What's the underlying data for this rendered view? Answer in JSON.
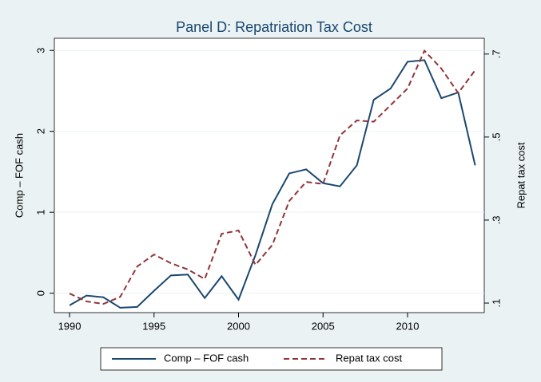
{
  "chart_data": {
    "type": "line",
    "title": "Panel D: Repatriation Tax Cost",
    "ylabel": "Comp – FOF cash",
    "y2label": "Repat tax cost",
    "x": [
      1990,
      1991,
      1992,
      1993,
      1994,
      1995,
      1996,
      1997,
      1998,
      1999,
      2000,
      2001,
      2002,
      2003,
      2004,
      2005,
      2006,
      2007,
      2008,
      2009,
      2010,
      2011,
      2012,
      2013,
      2014
    ],
    "series": [
      {
        "name": "Comp – FOF cash",
        "color": "#1a476f",
        "dash": "solid",
        "values": [
          -0.15,
          -0.03,
          -0.05,
          -0.18,
          -0.17,
          0.03,
          0.22,
          0.23,
          -0.06,
          0.21,
          -0.08,
          0.47,
          1.1,
          1.48,
          1.53,
          1.36,
          1.32,
          1.58,
          2.39,
          2.53,
          2.86,
          2.88,
          2.41,
          2.48,
          1.58
        ]
      },
      {
        "name": "Repat tax cost",
        "color": "#90353b",
        "dash": "dashed",
        "axis": "y2",
        "values": [
          0.123,
          0.104,
          0.098,
          0.115,
          0.188,
          0.217,
          0.196,
          0.181,
          0.158,
          0.267,
          0.275,
          0.192,
          0.24,
          0.346,
          0.392,
          0.387,
          0.504,
          0.54,
          0.537,
          0.577,
          0.617,
          0.708,
          0.665,
          0.606,
          0.661
        ]
      }
    ],
    "xlim": [
      1989.1,
      2014.54
    ],
    "xticks": [
      1990,
      1995,
      2000,
      2005,
      2010
    ],
    "ylim": [
      -0.24,
      3.15
    ],
    "yticks": [
      0,
      1,
      2,
      3
    ],
    "y2lim": [
      0.077,
      0.738
    ],
    "y2ticks": [
      {
        "value": 0.1,
        "label": ".1"
      },
      {
        "value": 0.3,
        "label": ".3"
      },
      {
        "value": 0.5,
        "label": ".5"
      },
      {
        "value": 0.7,
        "label": ".7"
      }
    ],
    "grid": true,
    "legend": "bottom"
  }
}
